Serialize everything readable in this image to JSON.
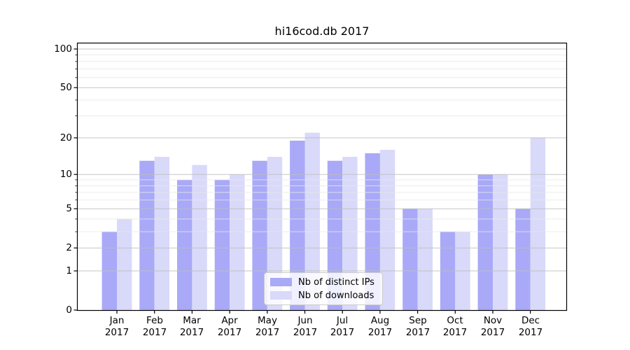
{
  "chart_data": {
    "type": "bar",
    "title": "hi16cod.db 2017",
    "year": "2017",
    "categories": [
      "Jan",
      "Feb",
      "Mar",
      "Apr",
      "May",
      "Jun",
      "Jul",
      "Aug",
      "Sep",
      "Oct",
      "Nov",
      "Dec"
    ],
    "series": [
      {
        "name": "Nb of distinct IPs",
        "color": "#a9a9f8",
        "values": [
          3,
          13,
          9,
          9,
          13,
          19,
          13,
          15,
          5,
          3,
          10,
          5
        ]
      },
      {
        "name": "Nb of downloads",
        "color": "#d9d9fa",
        "values": [
          4,
          14,
          12,
          10,
          14,
          22,
          14,
          16,
          5,
          3,
          10,
          20
        ]
      }
    ],
    "y_axis": {
      "scale": "log1p",
      "ticks": [
        0,
        1,
        2,
        5,
        10,
        20,
        50,
        100
      ],
      "minor_ticks": [
        3,
        4,
        6,
        7,
        8,
        9,
        30,
        40,
        60,
        70,
        80,
        90
      ],
      "max": 100
    },
    "xlabel": "",
    "ylabel": "",
    "grid": true,
    "legend": {
      "position": "lower center"
    },
    "colors": {
      "major_grid": "#bdbdbd",
      "minor_grid": "#e8e8e8",
      "spine": "#000000"
    }
  }
}
